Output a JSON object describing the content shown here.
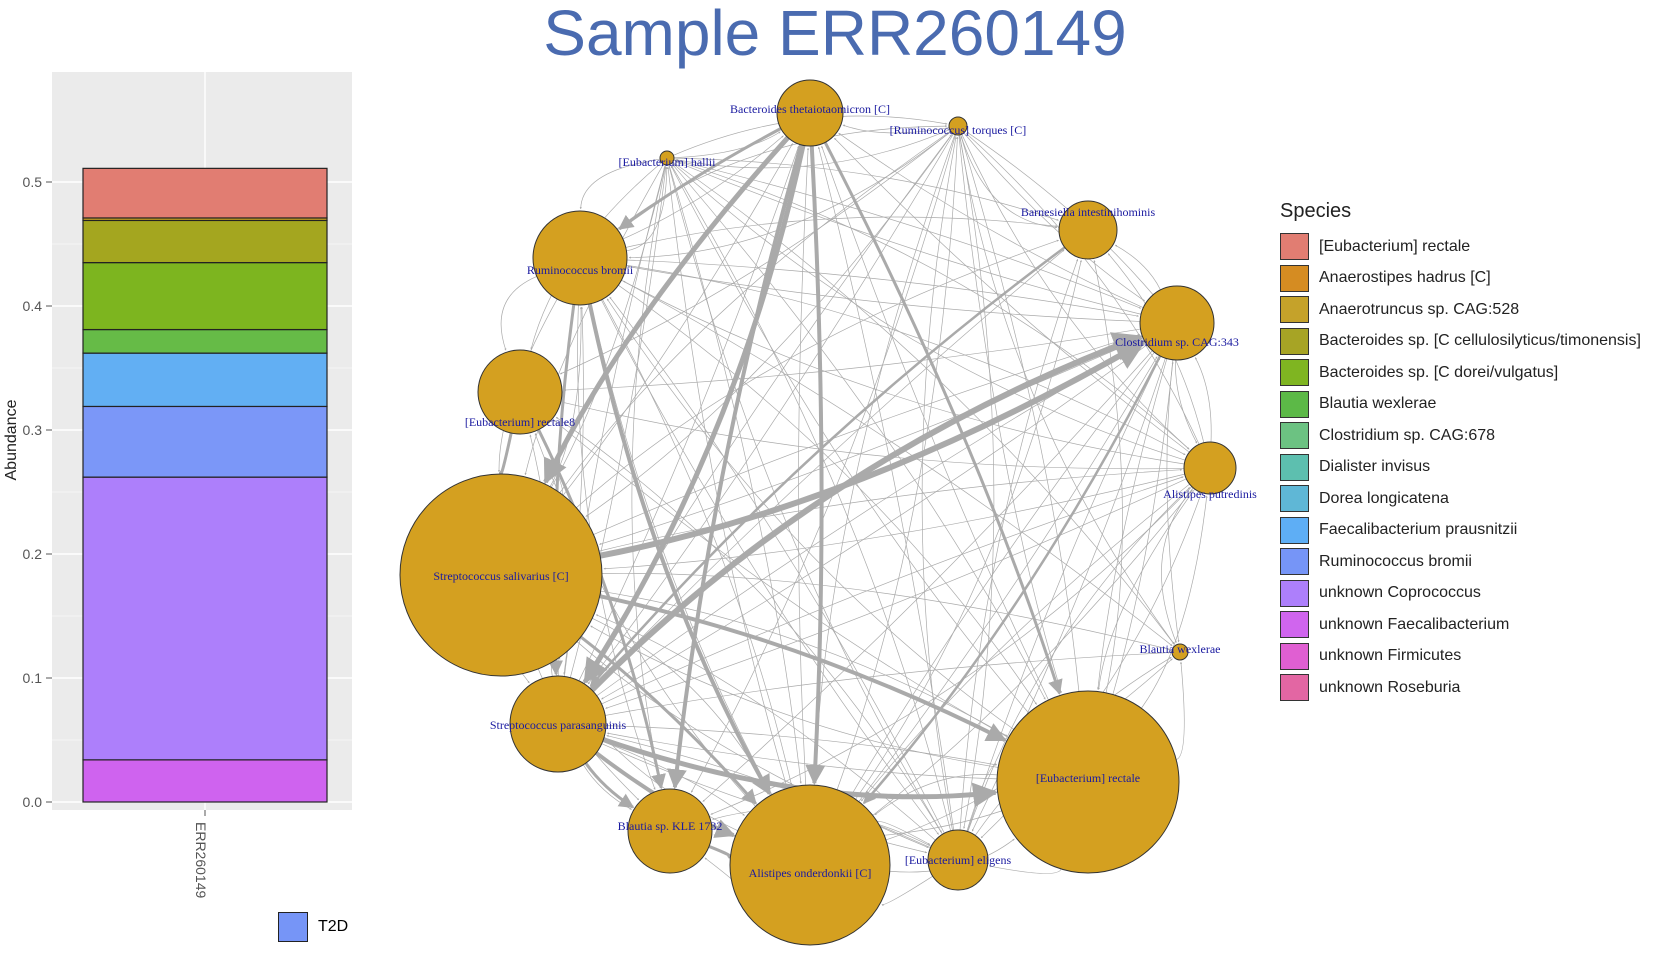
{
  "title": "Sample ERR260149",
  "chart_data": [
    {
      "type": "bar",
      "stacked": true,
      "categories": [
        "ERR260149"
      ],
      "ylabel": "Abundance",
      "ylim": [
        0,
        0.53
      ],
      "yticks": [
        "0.0",
        "0.1",
        "0.2",
        "0.3",
        "0.4",
        "0.5"
      ],
      "series": [
        {
          "name": "unknown Faecalibacterium",
          "values": [
            0.034
          ],
          "color": "#cf63ef"
        },
        {
          "name": "unknown Coprococcus",
          "values": [
            0.228
          ],
          "color": "#ad7ffb"
        },
        {
          "name": "Ruminococcus bromii",
          "values": [
            0.057
          ],
          "color": "#7b97f8"
        },
        {
          "name": "Faecalibacterium prausnitzii",
          "values": [
            0.043
          ],
          "color": "#62aff3"
        },
        {
          "name": "Blautia wexlerae",
          "values": [
            0.019
          ],
          "color": "#66bb47"
        },
        {
          "name": "Bacteroides sp. [C dorei/vulgatus]",
          "values": [
            0.054
          ],
          "color": "#7db51f"
        },
        {
          "name": "Bacteroides sp. [C cellulosilyticus/timonensis]",
          "values": [
            0.034
          ],
          "color": "#a4a61f"
        },
        {
          "name": "Anaerotruncus sp. CAG:528",
          "values": [
            0.002
          ],
          "color": "#c8a022"
        },
        {
          "name": "[Eubacterium] rectale",
          "values": [
            0.04
          ],
          "color": "#e17d72"
        }
      ],
      "legend": {
        "title": "Species",
        "position": "right",
        "items": [
          {
            "name": "[Eubacterium] rectale",
            "color": "#e17d72"
          },
          {
            "name": "Anaerostipes hadrus [C]",
            "color": "#d58c22"
          },
          {
            "name": "Anaerotruncus sp. CAG:528",
            "color": "#c5a22a"
          },
          {
            "name": "Bacteroides sp. [C cellulosilyticus/timonensis]",
            "color": "#a7a425"
          },
          {
            "name": "Bacteroides sp. [C dorei/vulgatus]",
            "color": "#7fb521"
          },
          {
            "name": "Blautia wexlerae",
            "color": "#5cb947"
          },
          {
            "name": "Clostridium sp. CAG:678",
            "color": "#6cc282"
          },
          {
            "name": "Dialister invisus",
            "color": "#5dbfaf"
          },
          {
            "name": "Dorea longicatena",
            "color": "#5fb7d6"
          },
          {
            "name": "Faecalibacterium prausnitzii",
            "color": "#5eaef5"
          },
          {
            "name": "Ruminococcus bromii",
            "color": "#7695f7"
          },
          {
            "name": "unknown Coprococcus",
            "color": "#ad7ffb"
          },
          {
            "name": "unknown Faecalibacterium",
            "color": "#d065ee"
          },
          {
            "name": "unknown Firmicutes",
            "color": "#e05fd2"
          },
          {
            "name": "unknown Roseburia",
            "color": "#e366a3"
          }
        ]
      },
      "group_legend": {
        "label": "T2D",
        "color": "#7695f7"
      }
    },
    {
      "type": "network",
      "node_color": "#d4a020",
      "edge_color": "#aaaaaa",
      "nodes": [
        {
          "label": "Bacteroides thetaiotaomicron [C]",
          "size": 3
        },
        {
          "label": "[Ruminococcus] torques [C]",
          "size": 1
        },
        {
          "label": "[Eubacterium] hallii",
          "size": 1
        },
        {
          "label": "Barnesiella intestinihominis",
          "size": 3
        },
        {
          "label": "Ruminococcus bromii",
          "size": 5
        },
        {
          "label": "Clostridium sp. CAG:343",
          "size": 4
        },
        {
          "label": "[Eubacterium] rectale8",
          "size": 4
        },
        {
          "label": "Alistipes putredinis",
          "size": 3
        },
        {
          "label": "Streptococcus salivarius [C]",
          "size": 10
        },
        {
          "label": "Blautia wexlerae",
          "size": 1
        },
        {
          "label": "Streptococcus parasanguinis",
          "size": 5
        },
        {
          "label": "[Eubacterium] rectale",
          "size": 9
        },
        {
          "label": "Blautia sp. KLE 1732",
          "size": 5
        },
        {
          "label": "Alistipes onderdonkii [C]",
          "size": 8
        },
        {
          "label": "[Eubacterium] eligens",
          "size": 3
        }
      ]
    }
  ]
}
